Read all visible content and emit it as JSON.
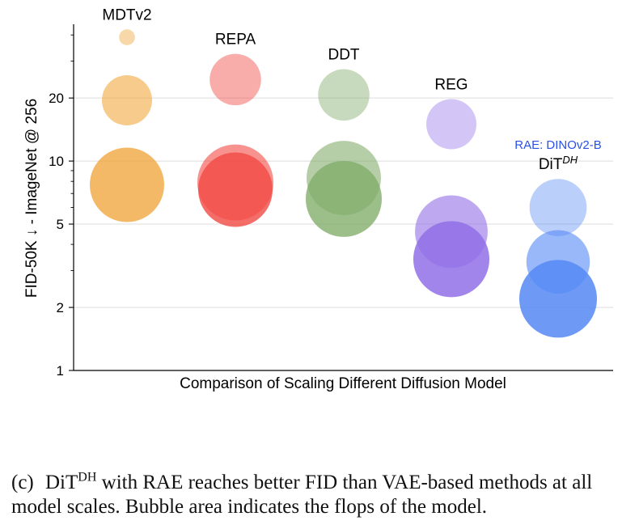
{
  "chart_data": {
    "type": "scatter",
    "subtype": "bubble",
    "title": "",
    "xlabel": "Comparison of Scaling Different Diffusion Model",
    "ylabel": "FID-50K ↓ - ImageNet @ 256",
    "yscale": "log",
    "ylim": [
      1,
      45
    ],
    "yticks": [
      1,
      2,
      5,
      10,
      20
    ],
    "ytick_labels": [
      "1",
      "2",
      "5",
      "10",
      "20"
    ],
    "grid": true,
    "size_encoding": "Bubble area indicates the flops of the model",
    "groups": [
      {
        "name": "MDTv2",
        "label": "MDTv2",
        "label_sup": "",
        "color": "#f0a840",
        "bubbles": [
          {
            "fid": 39.0,
            "flops": 0.1,
            "opacity": 0.45
          },
          {
            "fid": 19.5,
            "flops": 1.0,
            "opacity": 0.6
          },
          {
            "fid": 7.7,
            "flops": 2.2,
            "opacity": 0.8
          }
        ]
      },
      {
        "name": "REPA",
        "label": "REPA",
        "label_sup": "",
        "color": "#f14a44",
        "bubbles": [
          {
            "fid": 24.5,
            "flops": 1.05,
            "opacity": 0.45
          },
          {
            "fid": 7.9,
            "flops": 2.3,
            "opacity": 0.6
          },
          {
            "fid": 7.3,
            "flops": 2.2,
            "opacity": 0.8
          }
        ]
      },
      {
        "name": "DDT",
        "label": "DDT",
        "label_sup": "",
        "color": "#83ae6c",
        "bubbles": [
          {
            "fid": 20.7,
            "flops": 1.05,
            "opacity": 0.45
          },
          {
            "fid": 8.3,
            "flops": 2.2,
            "opacity": 0.6
          },
          {
            "fid": 6.6,
            "flops": 2.3,
            "opacity": 0.8
          }
        ]
      },
      {
        "name": "REG",
        "label": "REG",
        "label_sup": "",
        "color": "#9270e8",
        "bubbles": [
          {
            "fid": 15.0,
            "flops": 1.0,
            "opacity": 0.4
          },
          {
            "fid": 4.6,
            "flops": 2.1,
            "opacity": 0.6
          },
          {
            "fid": 3.4,
            "flops": 2.3,
            "opacity": 0.85
          }
        ]
      },
      {
        "name": "DiT-DH",
        "label": "DiT",
        "label_sup": "DH",
        "color": "#5588f5",
        "annotation": "RAE: DINOv2-B",
        "annotation_color": "#2850ea",
        "bubbles": [
          {
            "fid": 6.0,
            "flops": 1.3,
            "opacity": 0.4
          },
          {
            "fid": 3.3,
            "flops": 1.6,
            "opacity": 0.6
          },
          {
            "fid": 2.2,
            "flops": 2.4,
            "opacity": 0.85
          }
        ]
      }
    ]
  },
  "caption": {
    "tag": "(c)",
    "dit": "DiT",
    "sup": "DH",
    "rest": " with RAE reaches better FID than VAE-based methods at all model scales. Bubble area indicates the flops of the model."
  }
}
